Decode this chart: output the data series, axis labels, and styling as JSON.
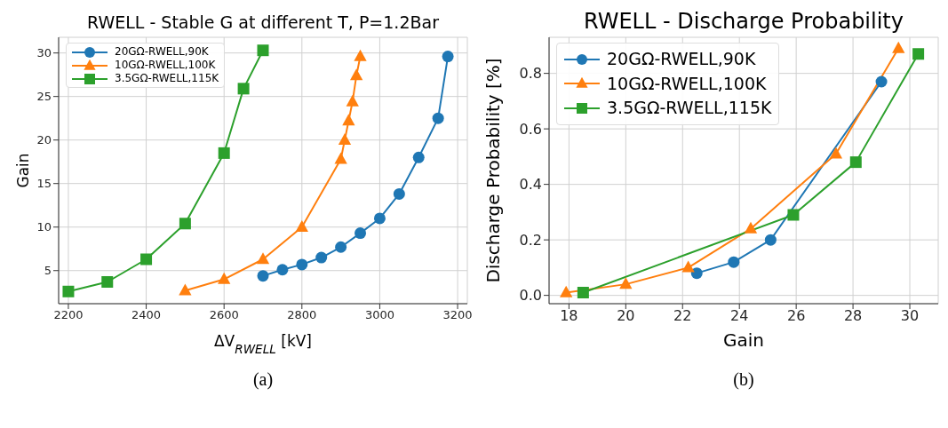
{
  "chart_data": [
    {
      "type": "line",
      "title": "RWELL - Stable G at different T, P=1.2Bar",
      "xlabel": "ΔV$_{RWELL}$ [kV]",
      "ylabel": "Gain",
      "xlim": [
        2175,
        3225
      ],
      "xticks": [
        2200,
        2400,
        2600,
        2800,
        3000,
        3200
      ],
      "ylim": [
        1.2,
        31.8
      ],
      "yticks": [
        5,
        10,
        15,
        20,
        25,
        30
      ],
      "grid": true,
      "legend": "top left",
      "annotations": [
        "(a)"
      ],
      "series": [
        {
          "name": "20GΩ-RWELL,90K",
          "color": "#1f77b4",
          "marker": "circle",
          "x": [
            2700,
            2750,
            2800,
            2850,
            2900,
            2950,
            3000,
            3050,
            3100,
            3150,
            3175
          ],
          "values": [
            4.4,
            5.1,
            5.7,
            6.5,
            7.7,
            9.3,
            11.0,
            13.8,
            18.0,
            22.5,
            29.6
          ]
        },
        {
          "name": "10GΩ-RWELL,100K",
          "color": "#ff7f0e",
          "marker": "triangle",
          "x": [
            2500,
            2600,
            2700,
            2800,
            2900,
            2910,
            2920,
            2930,
            2940,
            2950
          ],
          "values": [
            2.7,
            4.0,
            6.3,
            10.0,
            17.8,
            20.0,
            22.2,
            24.4,
            27.4,
            29.6
          ]
        },
        {
          "name": "3.5GΩ-RWELL,115K",
          "color": "#2ca02c",
          "marker": "square",
          "x": [
            2200,
            2300,
            2400,
            2500,
            2600,
            2650,
            2700
          ],
          "values": [
            2.6,
            3.7,
            6.3,
            10.4,
            18.5,
            25.9,
            30.3
          ]
        }
      ]
    },
    {
      "type": "line",
      "title": "RWELL - Discharge Probability",
      "xlabel": "Gain",
      "ylabel": "Discharge Probability [%]",
      "xlim": [
        17.3,
        31.0
      ],
      "xticks": [
        18,
        20,
        22,
        24,
        26,
        28,
        30
      ],
      "ylim": [
        -0.03,
        0.93
      ],
      "yticks": [
        {
          "value": 0,
          "label": "0.0"
        },
        0.2,
        0.4,
        0.6,
        0.8
      ],
      "grid": true,
      "legend": "top left",
      "annotations": [
        "(b)"
      ],
      "series": [
        {
          "name": "20GΩ-RWELL,90K",
          "color": "#1f77b4",
          "marker": "circle",
          "x": [
            22.5,
            23.8,
            25.1,
            29.0
          ],
          "values": [
            0.08,
            0.12,
            0.2,
            0.77
          ]
        },
        {
          "name": "10GΩ-RWELL,100K",
          "color": "#ff7f0e",
          "marker": "triangle",
          "x": [
            17.9,
            20.0,
            22.2,
            24.4,
            27.4,
            29.6
          ],
          "values": [
            0.01,
            0.04,
            0.1,
            0.24,
            0.51,
            0.89
          ]
        },
        {
          "name": "3.5GΩ-RWELL,115K",
          "color": "#2ca02c",
          "marker": "square",
          "x": [
            18.5,
            25.9,
            28.1,
            30.3
          ],
          "values": [
            0.01,
            0.29,
            0.48,
            0.87
          ]
        }
      ]
    }
  ]
}
